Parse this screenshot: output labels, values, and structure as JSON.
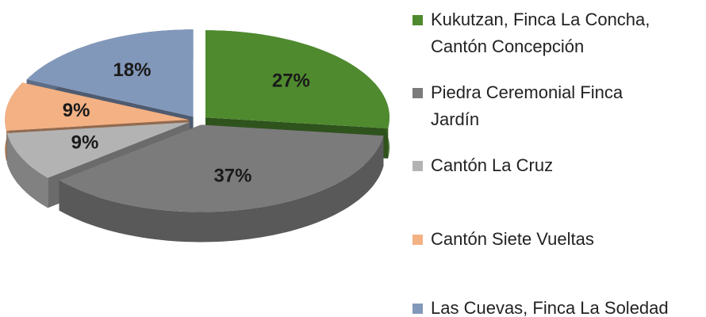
{
  "chart_data": {
    "type": "pie",
    "categories": [
      "Kukutzan, Finca La Concha, Cantón Concepción",
      "Piedra Ceremonial Finca Jardín",
      "Cantón La Cruz",
      "Cantón Siete Vueltas",
      "Las Cuevas, Finca La Soledad"
    ],
    "values": [
      27,
      37,
      9,
      9,
      18
    ],
    "value_labels": [
      "27%",
      "37%",
      "9%",
      "9%",
      "18%"
    ],
    "colors": [
      "#4f8a2f",
      "#7b7b7b",
      "#b3b3b3",
      "#f3b184",
      "#8298ba"
    ],
    "legend": "right"
  }
}
